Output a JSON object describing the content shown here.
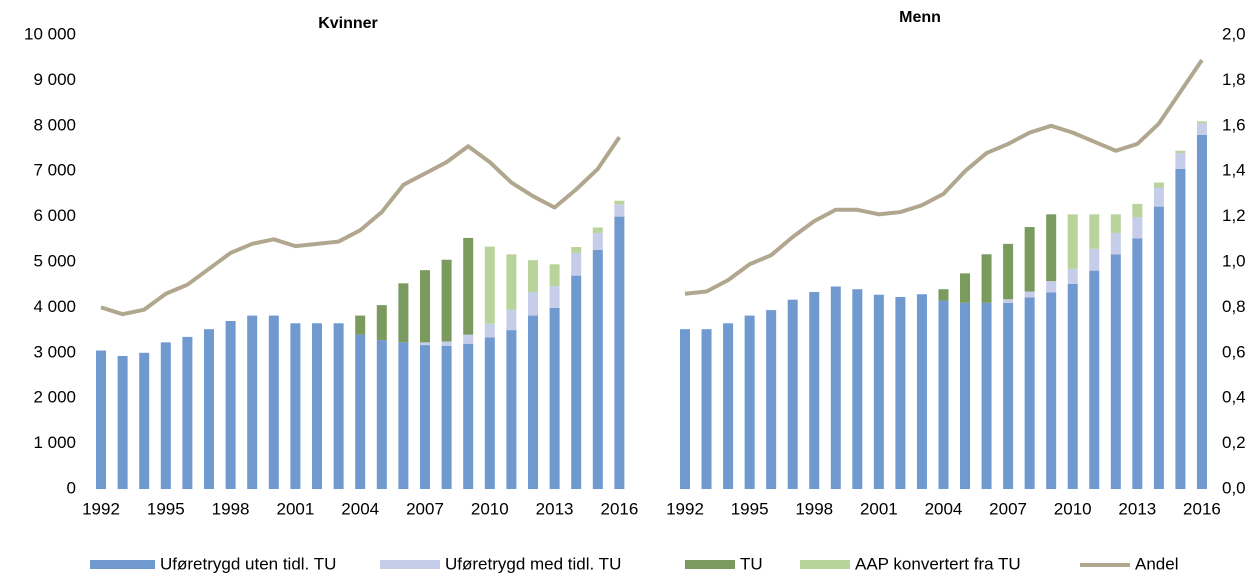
{
  "chart_data": {
    "type": "bar",
    "stacked": true,
    "panels": [
      "Kvinner",
      "Menn"
    ],
    "categories": [
      "1992",
      null,
      null,
      "1995",
      null,
      null,
      "1998",
      null,
      null,
      "2001",
      null,
      null,
      "2004",
      null,
      null,
      "2007",
      null,
      null,
      "2010",
      null,
      null,
      "2013",
      null,
      null,
      "2016"
    ],
    "ylim": [
      0,
      10000
    ],
    "yticks": [
      {
        "value": 0,
        "label": "0"
      },
      {
        "value": 1000,
        "label": "1 000"
      },
      {
        "value": 2000,
        "label": "2 000"
      },
      {
        "value": 3000,
        "label": "3 000"
      },
      {
        "value": 4000,
        "label": "4 000"
      },
      {
        "value": 5000,
        "label": "5 000"
      },
      {
        "value": 6000,
        "label": "6 000"
      },
      {
        "value": 7000,
        "label": "7 000"
      },
      {
        "value": 8000,
        "label": "8 000"
      },
      {
        "value": 9000,
        "label": "9 000"
      },
      {
        "value": 10000,
        "label": "10 000"
      }
    ],
    "y2lim": [
      0,
      2
    ],
    "y2ticks": [
      {
        "value": 0,
        "label": "0,0"
      },
      {
        "value": 0.2,
        "label": "0,2"
      },
      {
        "value": 0.4,
        "label": "0,4"
      },
      {
        "value": 0.6,
        "label": "0,6"
      },
      {
        "value": 0.8,
        "label": "0,8"
      },
      {
        "value": 1,
        "label": "1,0"
      },
      {
        "value": 1.2,
        "label": "1,2"
      },
      {
        "value": 1.4,
        "label": "1,4"
      },
      {
        "value": 1.6,
        "label": "1,6"
      },
      {
        "value": 1.8,
        "label": "1,8"
      },
      {
        "value": 2,
        "label": "2,0"
      }
    ],
    "series": [
      {
        "name": "Uføretrygd uten tidl. TU",
        "color": "#7099d0",
        "values": [
          [
            3050,
            2930,
            3000,
            3230,
            3350,
            3520,
            3700,
            3820,
            3820,
            3650,
            3650,
            3650,
            3400,
            3280,
            3230,
            3170,
            3150,
            3200,
            3340,
            3500,
            3820,
            3990,
            4700,
            5270,
            6000
          ],
          [
            3520,
            3520,
            3650,
            3820,
            3940,
            4170,
            4340,
            4460,
            4400,
            4280,
            4230,
            4290,
            4150,
            4100,
            4100,
            4100,
            4220,
            4330,
            4520,
            4810,
            5170,
            5520,
            6220,
            7050,
            7800
          ]
        ]
      },
      {
        "name": "Uføretrygd med tidl. TU",
        "color": "#c5cde8",
        "values": [
          [
            0,
            0,
            0,
            0,
            0,
            0,
            0,
            0,
            0,
            0,
            0,
            0,
            0,
            0,
            0,
            60,
            100,
            200,
            300,
            450,
            520,
            480,
            500,
            370,
            270
          ],
          [
            0,
            0,
            0,
            0,
            0,
            0,
            0,
            0,
            0,
            0,
            0,
            0,
            0,
            0,
            0,
            80,
            130,
            250,
            330,
            480,
            470,
            470,
            420,
            350,
            260
          ]
        ]
      },
      {
        "name": "TU",
        "color": "#7a9a5e",
        "values": [
          [
            0,
            0,
            0,
            0,
            0,
            0,
            0,
            0,
            0,
            0,
            0,
            0,
            420,
            770,
            1300,
            1590,
            1800,
            2130,
            0,
            0,
            0,
            0,
            0,
            0,
            0
          ],
          [
            0,
            0,
            0,
            0,
            0,
            0,
            0,
            0,
            0,
            0,
            0,
            0,
            250,
            650,
            1070,
            1220,
            1420,
            1470,
            0,
            0,
            0,
            0,
            0,
            0,
            0
          ]
        ]
      },
      {
        "name": "AAP konvertert fra TU",
        "color": "#b9d49b",
        "values": [
          [
            0,
            0,
            0,
            0,
            0,
            0,
            0,
            0,
            0,
            0,
            0,
            0,
            0,
            0,
            0,
            0,
            0,
            0,
            1700,
            1220,
            700,
            480,
            130,
            120,
            80
          ],
          [
            0,
            0,
            0,
            0,
            0,
            0,
            0,
            0,
            0,
            0,
            0,
            0,
            0,
            0,
            0,
            0,
            0,
            0,
            1200,
            760,
            410,
            290,
            110,
            50,
            40
          ]
        ]
      },
      {
        "name": "Andel",
        "color": "#b0a78e",
        "type": "line",
        "axis": "y2",
        "values": [
          [
            0.8,
            0.77,
            0.79,
            0.86,
            0.9,
            0.97,
            1.04,
            1.08,
            1.1,
            1.07,
            1.08,
            1.09,
            1.14,
            1.22,
            1.34,
            1.39,
            1.44,
            1.51,
            1.44,
            1.35,
            1.29,
            1.24,
            1.32,
            1.41,
            1.55
          ],
          [
            0.86,
            0.87,
            0.92,
            0.99,
            1.03,
            1.11,
            1.18,
            1.23,
            1.23,
            1.21,
            1.22,
            1.25,
            1.3,
            1.4,
            1.48,
            1.52,
            1.57,
            1.6,
            1.57,
            1.53,
            1.49,
            1.52,
            1.61,
            1.75,
            1.89
          ]
        ]
      }
    ]
  }
}
